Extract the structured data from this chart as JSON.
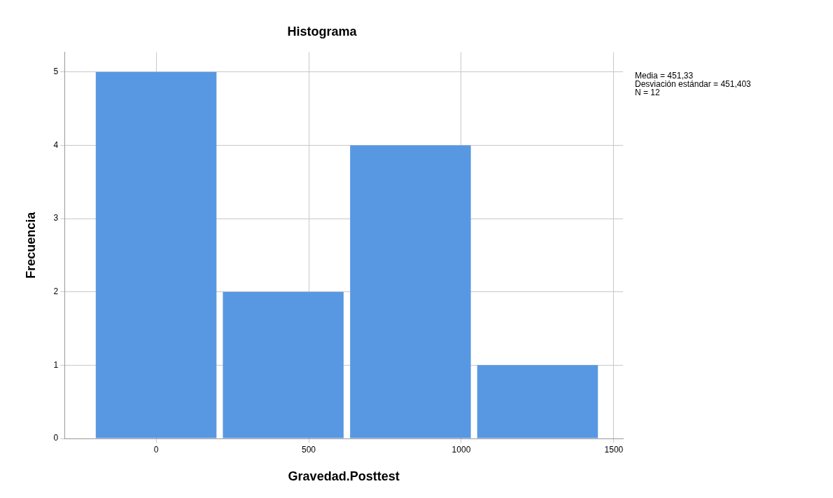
{
  "chart_data": {
    "type": "histogram",
    "title": "Histograma",
    "xlabel": "Gravedad.Posttest",
    "ylabel": "Frecuencia",
    "bins": [
      -208,
      208,
      625,
      1042,
      1458
    ],
    "values": [
      5,
      2,
      4,
      1
    ],
    "color": "#5898e3",
    "xlim": [
      -300,
      1530
    ],
    "xticks": [
      0,
      500,
      1000,
      1500
    ],
    "ylim": [
      0,
      5.27
    ],
    "yticks": [
      0,
      1,
      2,
      3,
      4,
      5
    ],
    "grid": true,
    "legend": false,
    "annotations": [
      "Media = 451,33",
      "Desviación estándar = 451,403",
      "N = 12"
    ]
  }
}
